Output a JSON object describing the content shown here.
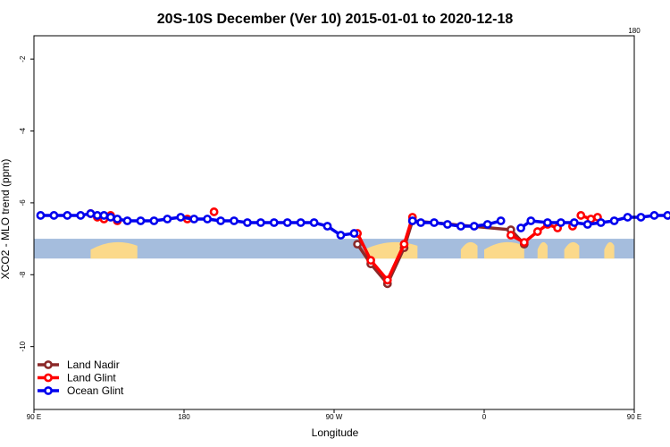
{
  "chart_data": {
    "type": "line",
    "title": "20S-10S December (Ver 10)   2015-01-01 to 2020-12-18",
    "xlabel": "Longitude",
    "ylabel": "XCO2 - MLO trend (ppm)",
    "xlim": [
      90,
      450
    ],
    "ylim": [
      -11.75,
      -1.35
    ],
    "x_ticks": [
      {
        "value": 90,
        "label": "90 E"
      },
      {
        "value": 180,
        "label": "180"
      },
      {
        "value": 270,
        "label": "90 W"
      },
      {
        "value": 360,
        "label": "0"
      },
      {
        "value": 450,
        "label": "90 E"
      }
    ],
    "x_ticks_top": [
      {
        "value": 450,
        "label": "180"
      }
    ],
    "y_ticks": [
      {
        "value": -2,
        "label": "-2"
      },
      {
        "value": -4,
        "label": "-4"
      },
      {
        "value": -6,
        "label": "-6"
      },
      {
        "value": -8,
        "label": "-8"
      },
      {
        "value": -10,
        "label": "-10"
      }
    ],
    "grid": false,
    "legend_position": "bottom-left",
    "map_band": {
      "y_range": [
        -7.55,
        -7.0
      ],
      "ocean_color": "#a5bddd",
      "land_color": "#fbd98a",
      "land_spans": [
        [
          124,
          152
        ],
        [
          288,
          320
        ],
        [
          346,
          356
        ],
        [
          360,
          384
        ],
        [
          392,
          398
        ],
        [
          408,
          417
        ],
        [
          432,
          438
        ]
      ]
    },
    "series": [
      {
        "name": "Land Nadir",
        "color": "#8b2a2a",
        "x": [
          284,
          292,
          302,
          312,
          317,
          376,
          384
        ],
        "y": [
          -7.15,
          -7.7,
          -8.25,
          -7.25,
          -6.5,
          -6.75,
          -7.15
        ]
      },
      {
        "name": "Land Glint",
        "color": "#ff0000",
        "segments": [
          {
            "x": [
              124,
              128,
              132,
              136,
              140
            ],
            "y": [
              -6.3,
              -6.4,
              -6.45,
              -6.35,
              -6.5
            ]
          },
          {
            "x": [
              182
            ],
            "y": [
              -6.45
            ]
          },
          {
            "x": [
              198
            ],
            "y": [
              -6.25
            ]
          },
          {
            "x": [
              284,
              292,
              302,
              312,
              317
            ],
            "y": [
              -6.85,
              -7.6,
              -8.15,
              -7.15,
              -6.4
            ]
          },
          {
            "x": [
              376,
              384,
              392,
              398,
              404
            ],
            "y": [
              -6.9,
              -7.1,
              -6.8,
              -6.6,
              -6.7
            ]
          },
          {
            "x": [
              413
            ],
            "y": [
              -6.65
            ]
          },
          {
            "x": [
              418,
              424,
              428
            ],
            "y": [
              -6.35,
              -6.45,
              -6.4
            ]
          }
        ]
      },
      {
        "name": "Ocean Glint",
        "color": "#0000ee",
        "segments": [
          {
            "x": [
              94,
              102,
              110,
              118,
              124,
              128,
              132,
              136,
              140,
              146,
              154,
              162,
              170,
              178,
              186,
              194,
              202,
              210,
              218,
              226,
              234,
              242,
              250,
              258,
              266,
              274,
              282
            ],
            "y": [
              -6.35,
              -6.35,
              -6.35,
              -6.35,
              -6.3,
              -6.35,
              -6.35,
              -6.4,
              -6.45,
              -6.5,
              -6.5,
              -6.5,
              -6.45,
              -6.4,
              -6.45,
              -6.45,
              -6.5,
              -6.5,
              -6.55,
              -6.55,
              -6.55,
              -6.55,
              -6.55,
              -6.55,
              -6.65,
              -6.9,
              -6.85
            ]
          },
          {
            "x": [
              317,
              322,
              330,
              338,
              346,
              354,
              362,
              370
            ],
            "y": [
              -6.5,
              -6.55,
              -6.55,
              -6.6,
              -6.65,
              -6.65,
              -6.6,
              -6.5
            ]
          },
          {
            "x": [
              382,
              388,
              398,
              406,
              414,
              422,
              430,
              438,
              446,
              454,
              462,
              470,
              478,
              486,
              494,
              502,
              510,
              518,
              526,
              534,
              542,
              548
            ],
            "y": [
              -6.7,
              -6.5,
              -6.55,
              -6.55,
              -6.55,
              -6.6,
              -6.55,
              -6.5,
              -6.4,
              -6.4,
              -6.35,
              -6.35,
              -6.3,
              -6.4,
              -6.45,
              -6.5,
              -6.45,
              -6.5,
              -6.5,
              -6.5,
              -6.5,
              -6.45
            ]
          }
        ]
      }
    ]
  }
}
